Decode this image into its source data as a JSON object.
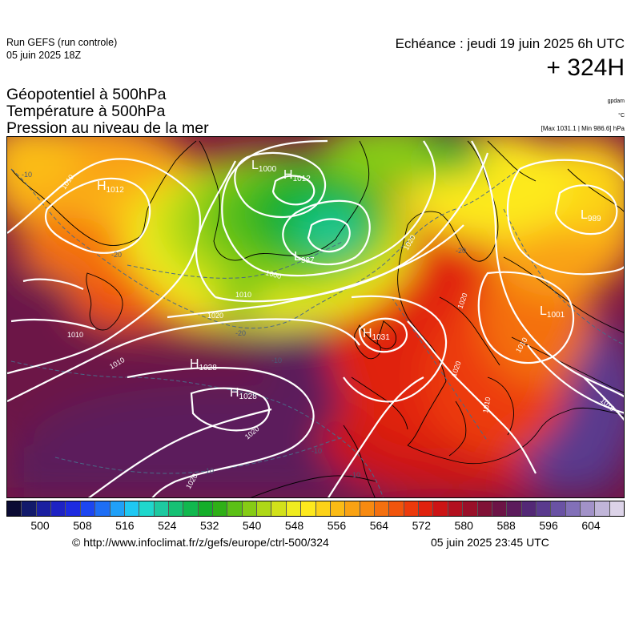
{
  "header": {
    "run_title": "Run GEFS (run controle)",
    "run_date": "05 juin 2025 18Z",
    "echeance": "Echéance : jeudi 19 juin 2025 6h UTC",
    "lead_time": "+ 324H",
    "params": [
      "Géopotentiel à 500hPa",
      "Température à 500hPa",
      "Pression au niveau de la mer"
    ],
    "unit_geopotential": "gpdam",
    "unit_temperature": "°C",
    "minmax": "[Max 1031.1 | Min 986.6] hPa"
  },
  "map_labels": {
    "pressure_centers": [
      {
        "type": "H",
        "value": "1012"
      },
      {
        "type": "L",
        "value": "1000"
      },
      {
        "type": "H",
        "value": "1012"
      },
      {
        "type": "L",
        "value": "987"
      },
      {
        "type": "L",
        "value": "989"
      },
      {
        "type": "L",
        "value": "1001"
      },
      {
        "type": "H",
        "value": "1031"
      },
      {
        "type": "H",
        "value": "1028"
      },
      {
        "type": "H",
        "value": "1028"
      }
    ],
    "isobar_labels": [
      "1010",
      "1000",
      "1010",
      "1010",
      "1020",
      "1010",
      "1020",
      "1020",
      "1020",
      "1020",
      "1010",
      "1010",
      "1010",
      "1020"
    ],
    "temperature_labels": [
      "-10",
      "-20",
      "-20",
      "-10",
      "-10",
      "-10",
      "-10",
      "-20"
    ]
  },
  "colorbar": {
    "colors": [
      "#0b0b34",
      "#121a6b",
      "#1a1fa0",
      "#1e22c4",
      "#1d2be0",
      "#1c46f0",
      "#1e6ef5",
      "#20a0f8",
      "#1fc8f3",
      "#1fd7cc",
      "#1dc9a0",
      "#16c174",
      "#11b84e",
      "#15ae2a",
      "#2fb017",
      "#5bc016",
      "#86cc15",
      "#aed817",
      "#d2e11a",
      "#f0ec1f",
      "#fde91d",
      "#fcd218",
      "#fbbb15",
      "#f9a213",
      "#f78a11",
      "#f4700f",
      "#f1550d",
      "#ec3a0c",
      "#e0220e",
      "#cc1415",
      "#b3101f",
      "#991029",
      "#801136",
      "#6c1446",
      "#5c1b5c",
      "#532876",
      "#5a3a8e",
      "#6a52a4",
      "#8270b8",
      "#a292c8",
      "#c0b5d8",
      "#dcd3e8"
    ],
    "ticks": [
      "500",
      "508",
      "516",
      "524",
      "532",
      "540",
      "548",
      "556",
      "564",
      "572",
      "580",
      "588",
      "596",
      "604"
    ]
  },
  "footer": {
    "url": "© http://www.infoclimat.fr/z/gefs/europe/ctrl-500/324",
    "timestamp": "05 juin 2025 23:45 UTC"
  }
}
